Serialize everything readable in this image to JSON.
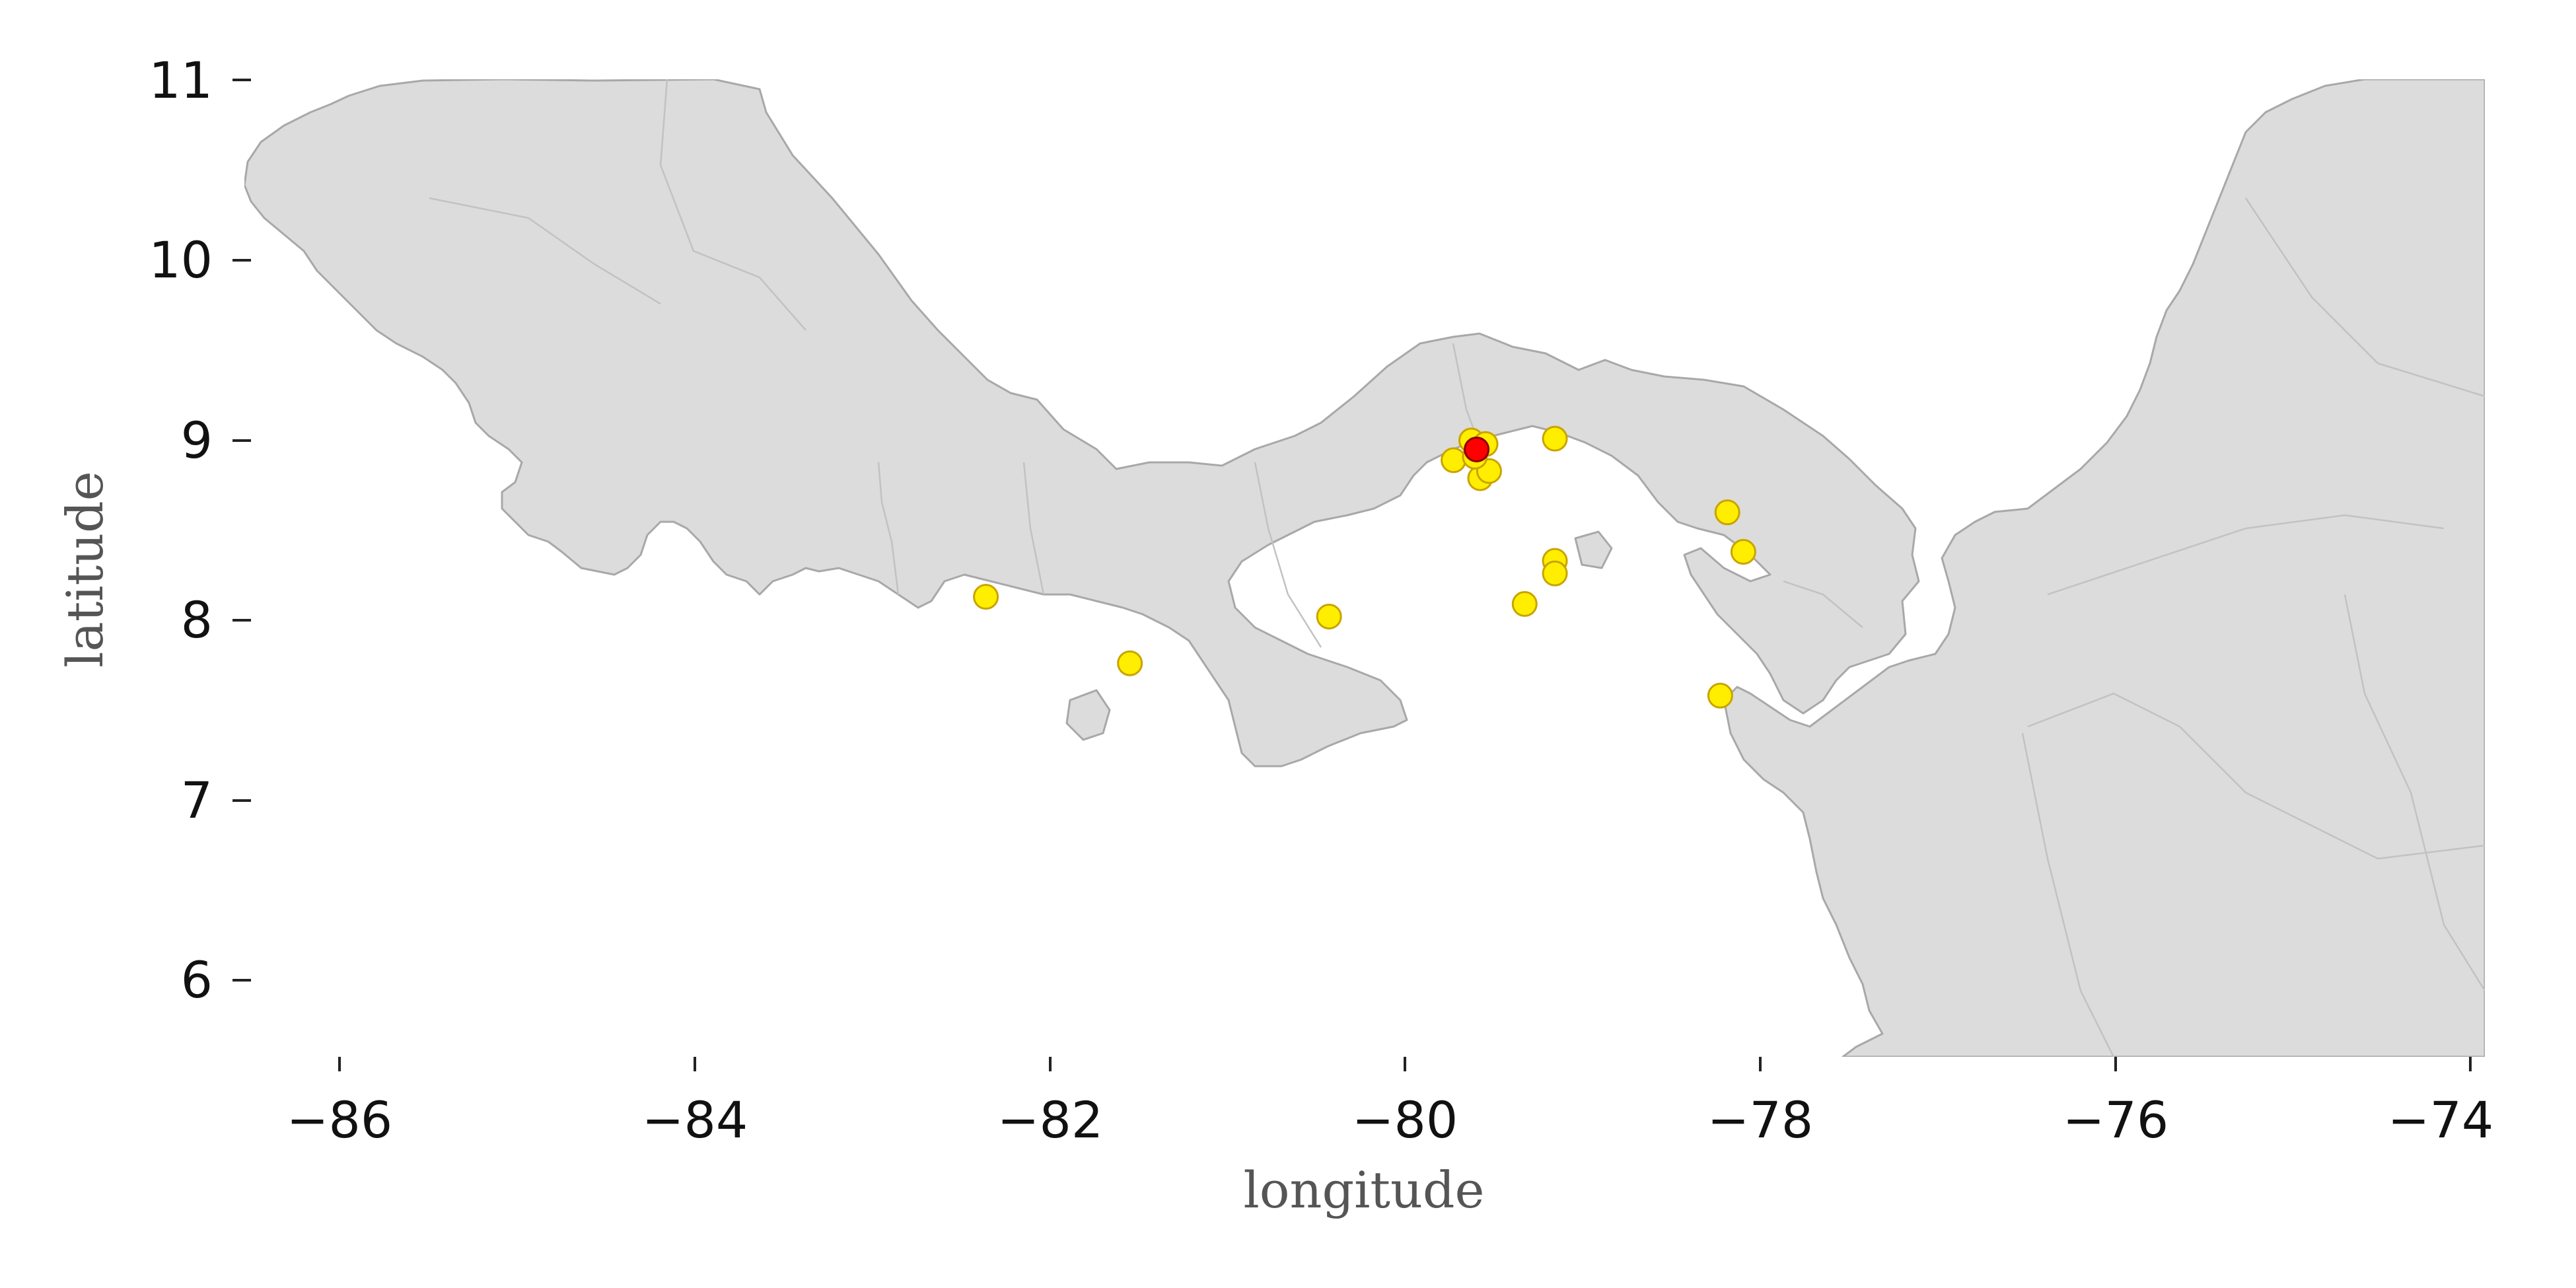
{
  "map": {
    "x_axis_title": "longitude",
    "y_axis_title": "latitude",
    "x_range": [
      -86.5,
      -73.9
    ],
    "y_range": [
      5.56,
      11.0
    ],
    "x_ticks": [
      "−86",
      "−84",
      "−82",
      "−80",
      "−78",
      "−76",
      "−74"
    ],
    "y_ticks": [
      "6",
      "7",
      "8",
      "9",
      "10",
      "11"
    ],
    "colors": {
      "land": "#dcdcdc",
      "coast": "#a8a8a8",
      "point_fill": "#ffee00",
      "point_edge": "#c9a400",
      "highlight_fill": "#ff0000",
      "highlight_edge": "#8b0000"
    },
    "points": [
      {
        "lon": -82.33,
        "lat": 8.12
      },
      {
        "lon": -81.52,
        "lat": 7.75
      },
      {
        "lon": -80.4,
        "lat": 8.01
      },
      {
        "lon": -79.7,
        "lat": 8.88
      },
      {
        "lon": -79.6,
        "lat": 8.99
      },
      {
        "lon": -79.52,
        "lat": 8.97
      },
      {
        "lon": -79.55,
        "lat": 8.78
      },
      {
        "lon": -79.5,
        "lat": 8.82
      },
      {
        "lon": -79.58,
        "lat": 8.9
      },
      {
        "lon": -79.13,
        "lat": 9.0
      },
      {
        "lon": -79.13,
        "lat": 8.32
      },
      {
        "lon": -79.13,
        "lat": 8.25
      },
      {
        "lon": -79.3,
        "lat": 8.08
      },
      {
        "lon": -78.16,
        "lat": 8.59
      },
      {
        "lon": -78.07,
        "lat": 8.37
      },
      {
        "lon": -78.2,
        "lat": 7.57
      }
    ],
    "highlight": {
      "lon": -79.57,
      "lat": 8.94
    }
  }
}
